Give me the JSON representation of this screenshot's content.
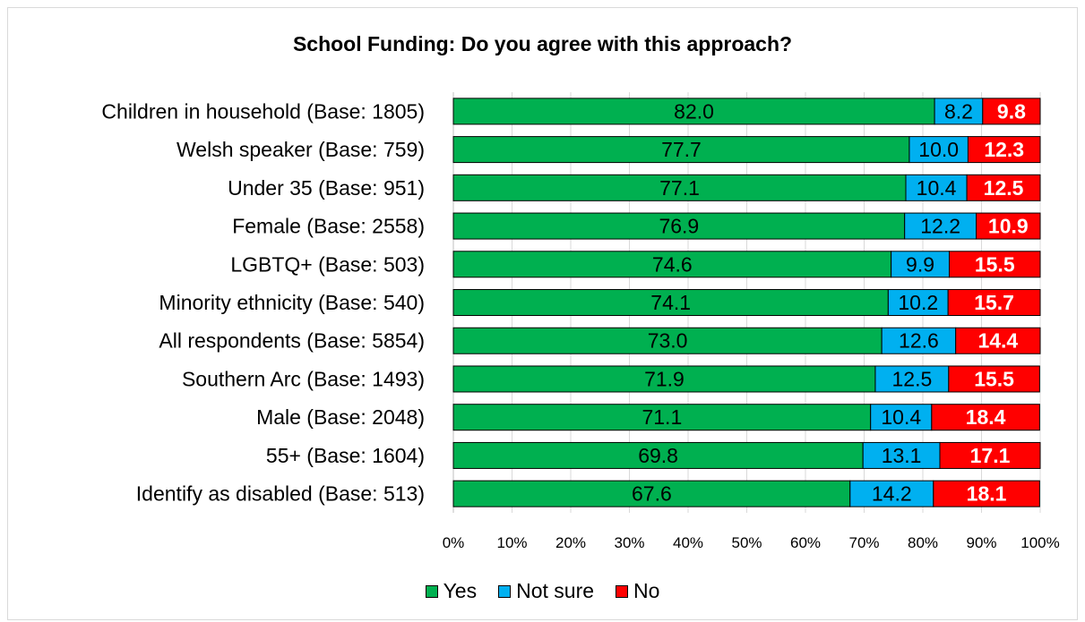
{
  "chart_data": {
    "type": "bar",
    "orientation": "horizontal",
    "stacked": "percent",
    "title": "School Funding: Do you agree with this approach?",
    "categories": [
      "Children in household (Base: 1805)",
      "Welsh speaker (Base: 759)",
      "Under 35 (Base: 951)",
      "Female (Base: 2558)",
      "LGBTQ+ (Base: 503)",
      "Minority ethnicity (Base: 540)",
      "All respondents (Base: 5854)",
      "Southern Arc (Base: 1493)",
      "Male (Base: 2048)",
      "55+ (Base: 1604)",
      "Identify as disabled (Base: 513)"
    ],
    "series": [
      {
        "name": "Yes",
        "color": "#00b050",
        "values": [
          82.0,
          77.7,
          77.1,
          76.9,
          74.6,
          74.1,
          73.0,
          71.9,
          71.1,
          69.8,
          67.6
        ],
        "labels": [
          "82.0",
          "77.7",
          "77.1",
          "76.9",
          "74.6",
          "74.1",
          "73.0",
          "71.9",
          "71.1",
          "69.8",
          "67.6"
        ]
      },
      {
        "name": "Not sure",
        "color": "#00b0f0",
        "values": [
          8.2,
          10.0,
          10.4,
          12.2,
          9.9,
          10.2,
          12.6,
          12.5,
          10.4,
          13.1,
          14.2
        ],
        "labels": [
          "8.2",
          "10.0",
          "10.4",
          "12.2",
          "9.9",
          "10.2",
          "12.6",
          "12.5",
          "10.4",
          "13.1",
          "14.2"
        ]
      },
      {
        "name": "No",
        "color": "#ff0000",
        "values": [
          9.8,
          12.3,
          12.5,
          10.9,
          15.5,
          15.7,
          14.4,
          15.5,
          18.4,
          17.1,
          18.1
        ],
        "labels": [
          "9.8",
          "12.3",
          "12.5",
          "10.9",
          "15.5",
          "15.7",
          "14.4",
          "15.5",
          "18.4",
          "17.1",
          "18.1"
        ]
      }
    ],
    "xlim": [
      0,
      100
    ],
    "xticks": [
      "0%",
      "10%",
      "20%",
      "30%",
      "40%",
      "50%",
      "60%",
      "70%",
      "80%",
      "90%",
      "100%"
    ],
    "grid": true,
    "legend": "bottom"
  }
}
